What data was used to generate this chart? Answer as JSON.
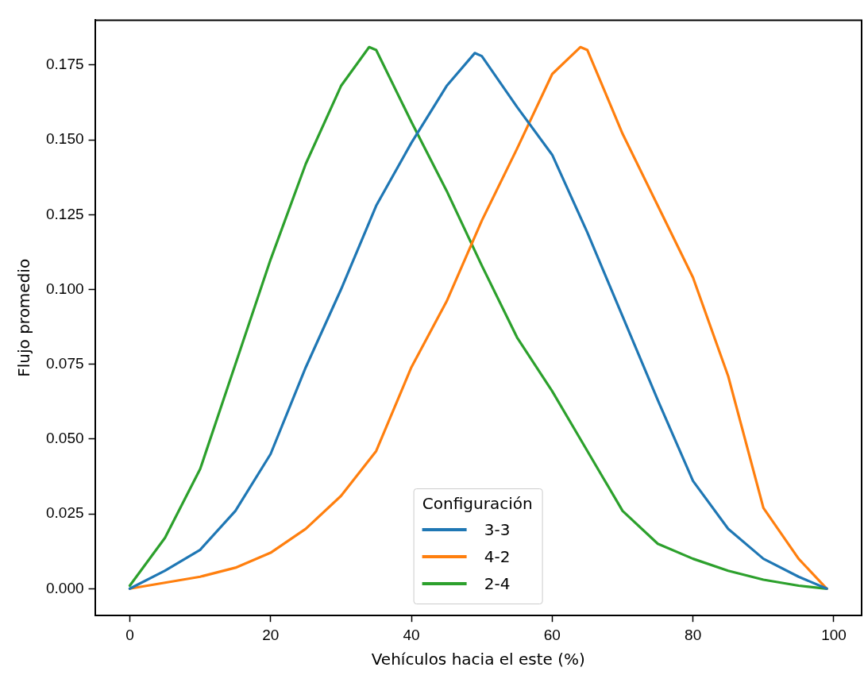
{
  "chart_data": {
    "type": "line",
    "xlabel": "Vehículos hacia el este (%)",
    "ylabel": "Flujo promedio",
    "legend_title": "Configuración",
    "legend": "bottom",
    "grid": false,
    "marker": "none",
    "line_style": "solid",
    "xlim": [
      -4.95,
      103.95
    ],
    "xticks": [
      0,
      20,
      40,
      60,
      80,
      100
    ],
    "ylim": [
      -0.009,
      0.19
    ],
    "yticks": [
      {
        "value": 0,
        "label": "0.000"
      },
      {
        "value": 0.025,
        "label": "0.025"
      },
      {
        "value": 0.05,
        "label": "0.050"
      },
      {
        "value": 0.075,
        "label": "0.075"
      },
      {
        "value": 0.1,
        "label": "0.100"
      },
      {
        "value": 0.125,
        "label": "0.125"
      },
      {
        "value": 0.15,
        "label": "0.150"
      },
      {
        "value": 0.175,
        "label": "0.175"
      }
    ],
    "series": [
      {
        "name": "3-3",
        "color": "#1f77b4",
        "x": [
          0,
          5,
          10,
          15,
          20,
          25,
          30,
          35,
          40,
          45,
          49,
          50,
          55,
          60,
          65,
          70,
          75,
          80,
          85,
          90,
          95,
          99
        ],
        "values": [
          0,
          0.006,
          0.013,
          0.026,
          0.045,
          0.074,
          0.1,
          0.128,
          0.149,
          0.168,
          0.179,
          0.178,
          0.161,
          0.145,
          0.119,
          0.091,
          0.063,
          0.036,
          0.02,
          0.01,
          0.004,
          0
        ]
      },
      {
        "name": "4-2",
        "color": "#ff7f0e",
        "x": [
          0,
          5,
          10,
          15,
          20,
          25,
          30,
          35,
          40,
          45,
          50,
          55,
          60,
          64,
          65,
          70,
          75,
          80,
          85,
          90,
          95,
          99
        ],
        "values": [
          0,
          0.002,
          0.004,
          0.007,
          0.012,
          0.02,
          0.031,
          0.046,
          0.074,
          0.096,
          0.123,
          0.147,
          0.172,
          0.181,
          0.18,
          0.152,
          0.128,
          0.104,
          0.071,
          0.027,
          0.01,
          0
        ]
      },
      {
        "name": "2-4",
        "color": "#2ca02c",
        "x": [
          0,
          5,
          10,
          15,
          20,
          25,
          30,
          34,
          35,
          40,
          45,
          50,
          55,
          60,
          65,
          70,
          75,
          80,
          85,
          90,
          95,
          99
        ],
        "values": [
          0.001,
          0.017,
          0.04,
          0.075,
          0.11,
          0.142,
          0.168,
          0.181,
          0.18,
          0.156,
          0.133,
          0.108,
          0.084,
          0.066,
          0.046,
          0.026,
          0.015,
          0.01,
          0.006,
          0.003,
          0.001,
          0
        ]
      }
    ]
  }
}
